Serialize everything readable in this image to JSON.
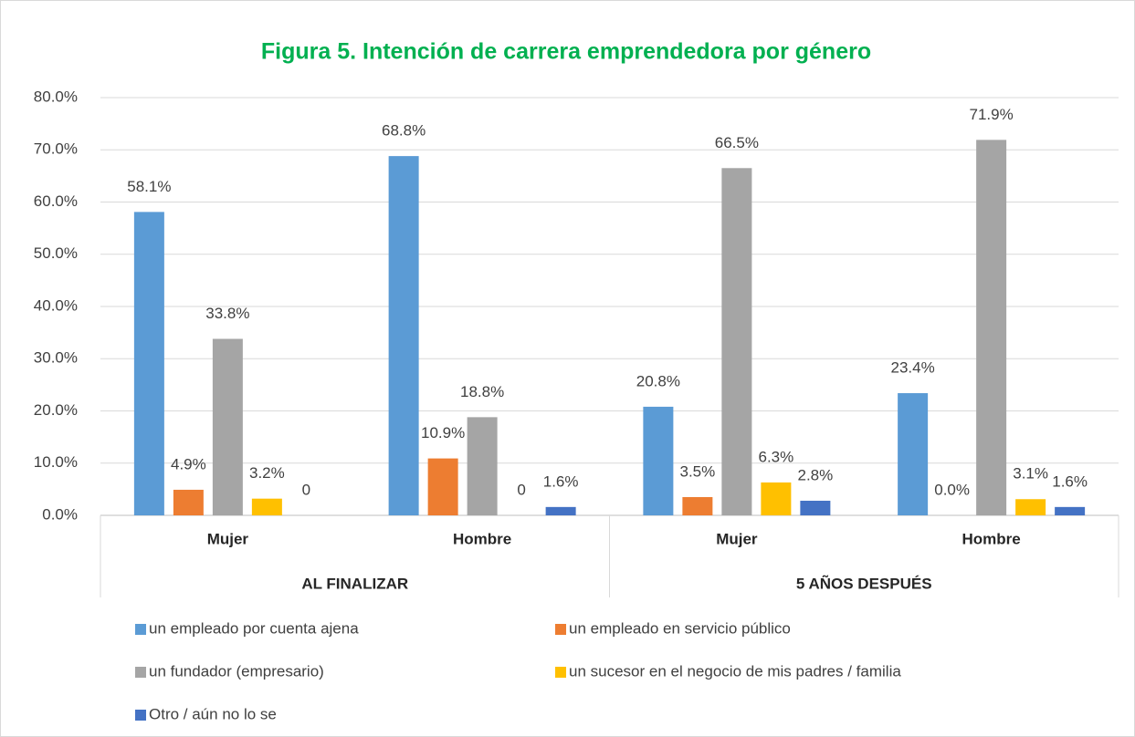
{
  "chart_data": {
    "type": "bar",
    "title": "Figura 5. Intención de carrera emprendedora por género",
    "categories": [
      "Mujer",
      "Hombre",
      "Mujer",
      "Hombre"
    ],
    "groups": [
      "AL FINALIZAR",
      "5 AÑOS DESPUÉS"
    ],
    "series": [
      {
        "name": "un empleado por cuenta ajena",
        "color": "#5b9bd5",
        "values": [
          58.1,
          68.8,
          20.8,
          23.4
        ],
        "value_labels": [
          "58.1%",
          "68.8%",
          "20.8%",
          "23.4%"
        ]
      },
      {
        "name": "un empleado en servicio público",
        "color": "#ed7d31",
        "values": [
          4.9,
          10.9,
          3.5,
          0.0
        ],
        "value_labels": [
          "4.9%",
          "10.9%",
          "3.5%",
          "0.0%"
        ]
      },
      {
        "name": "un fundador (empresario)",
        "color": "#a5a5a5",
        "values": [
          33.8,
          18.8,
          66.5,
          71.9
        ],
        "value_labels": [
          "33.8%",
          "18.8%",
          "66.5%",
          "71.9%"
        ]
      },
      {
        "name": "un sucesor en el negocio de mis padres / familia",
        "color": "#ffc000",
        "values": [
          3.2,
          0,
          6.3,
          3.1
        ],
        "value_labels": [
          "3.2%",
          "0",
          "6.3%",
          "3.1%"
        ]
      },
      {
        "name": "Otro / aún no lo se",
        "color": "#4472c4",
        "values": [
          0,
          1.6,
          2.8,
          1.6
        ],
        "value_labels": [
          "0",
          "1.6%",
          "2.8%",
          "1.6%"
        ]
      }
    ],
    "ylim": [
      0,
      80
    ],
    "yticks": [
      {
        "value": 0,
        "label": "0.0%"
      },
      {
        "value": 10,
        "label": "10.0%"
      },
      {
        "value": 20,
        "label": "20.0%"
      },
      {
        "value": 30,
        "label": "30.0%"
      },
      {
        "value": 40,
        "label": "40.0%"
      },
      {
        "value": 50,
        "label": "50.0%"
      },
      {
        "value": 60,
        "label": "60.0%"
      },
      {
        "value": 70,
        "label": "70.0%"
      },
      {
        "value": 80,
        "label": "80.0%"
      }
    ],
    "grid": true
  }
}
